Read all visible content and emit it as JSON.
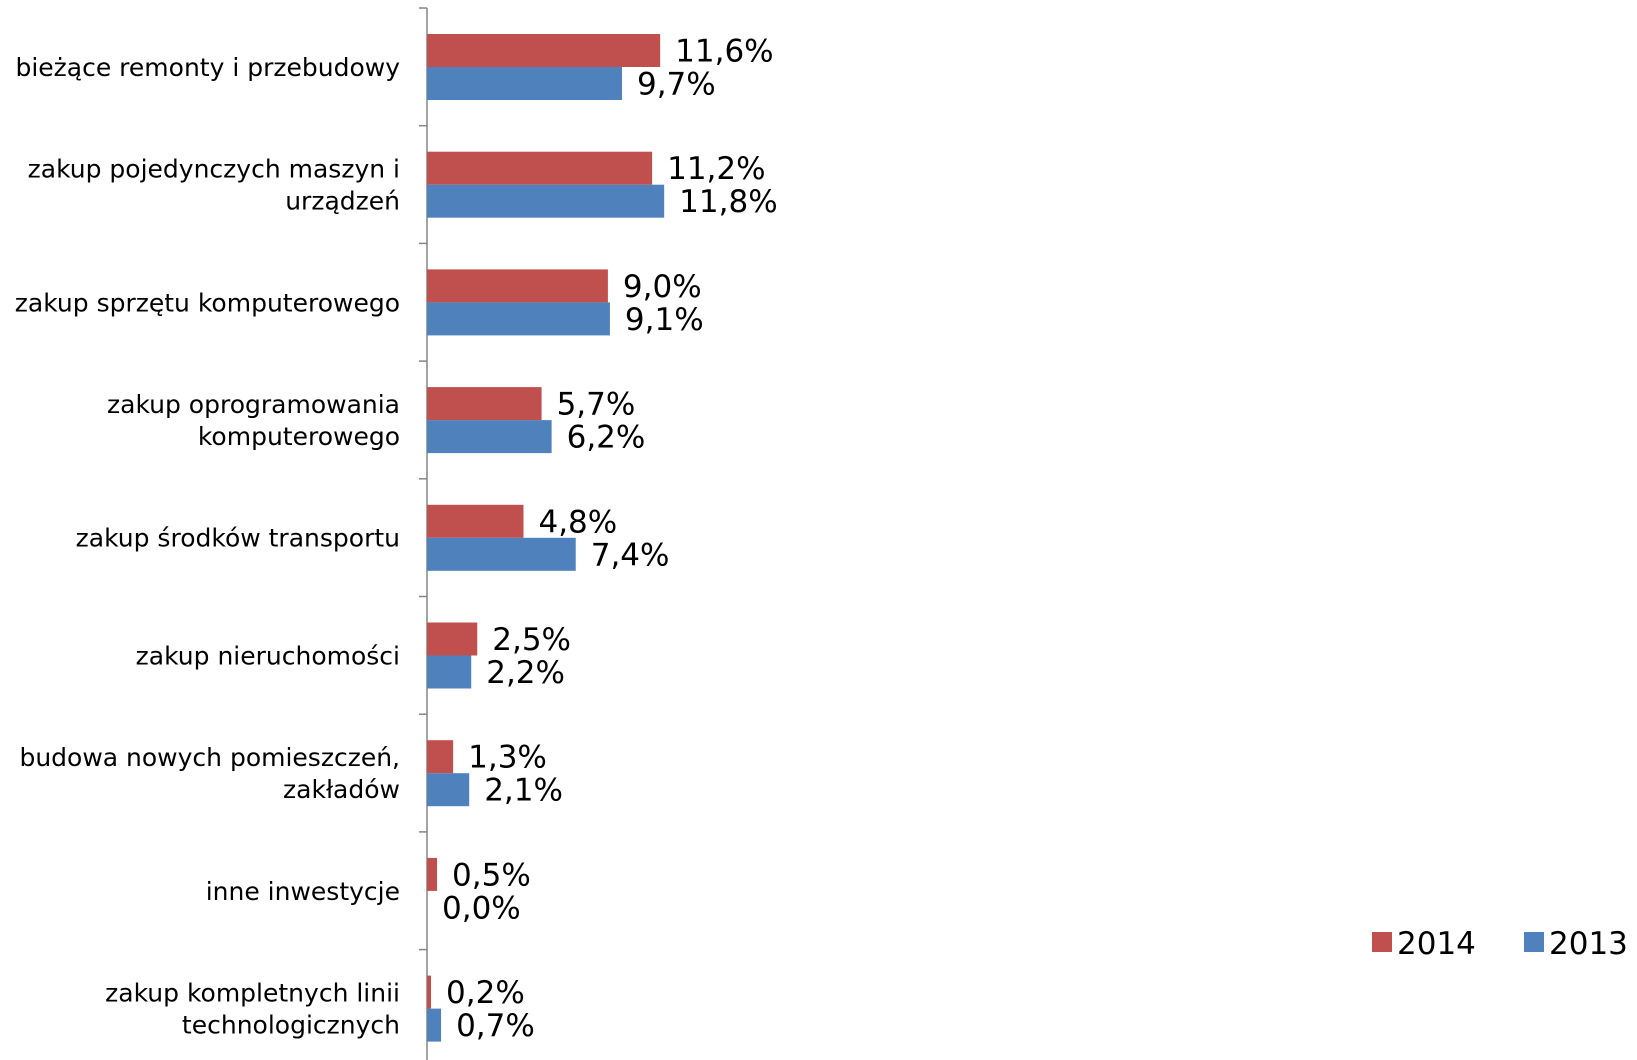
{
  "chart_data": {
    "type": "bar",
    "orientation": "horizontal",
    "categories": [
      [
        "bieżące remonty i przebudowy"
      ],
      [
        "zakup pojedynczych maszyn i",
        "urządzeń"
      ],
      [
        "zakup sprzętu komputerowego"
      ],
      [
        "zakup oprogramowania",
        "komputerowego"
      ],
      [
        "zakup środków transportu"
      ],
      [
        "zakup nieruchomości"
      ],
      [
        "budowa nowych pomieszczeń,",
        "zakładów"
      ],
      [
        "inne inwestycje"
      ],
      [
        "zakup kompletnych linii",
        "technologicznych"
      ]
    ],
    "series": [
      {
        "name": "2014",
        "color": "#c0504d",
        "values": [
          11.6,
          11.2,
          9.0,
          5.7,
          4.8,
          2.5,
          1.3,
          0.5,
          0.2
        ],
        "labels": [
          "11,6%",
          "11,2%",
          "9,0%",
          "5,7%",
          "4,8%",
          "2,5%",
          "1,3%",
          "0,5%",
          "0,2%"
        ]
      },
      {
        "name": "2013",
        "color": "#4f81bd",
        "values": [
          9.7,
          11.8,
          9.1,
          6.2,
          7.4,
          2.2,
          2.1,
          0.0,
          0.7
        ],
        "labels": [
          "9,7%",
          "11,8%",
          "9,1%",
          "6,2%",
          "7,4%",
          "2,2%",
          "2,1%",
          "0,0%",
          "0,7%"
        ]
      }
    ],
    "legend_position": "bottom-right",
    "grid": false,
    "xlim": [
      0,
      13
    ]
  }
}
